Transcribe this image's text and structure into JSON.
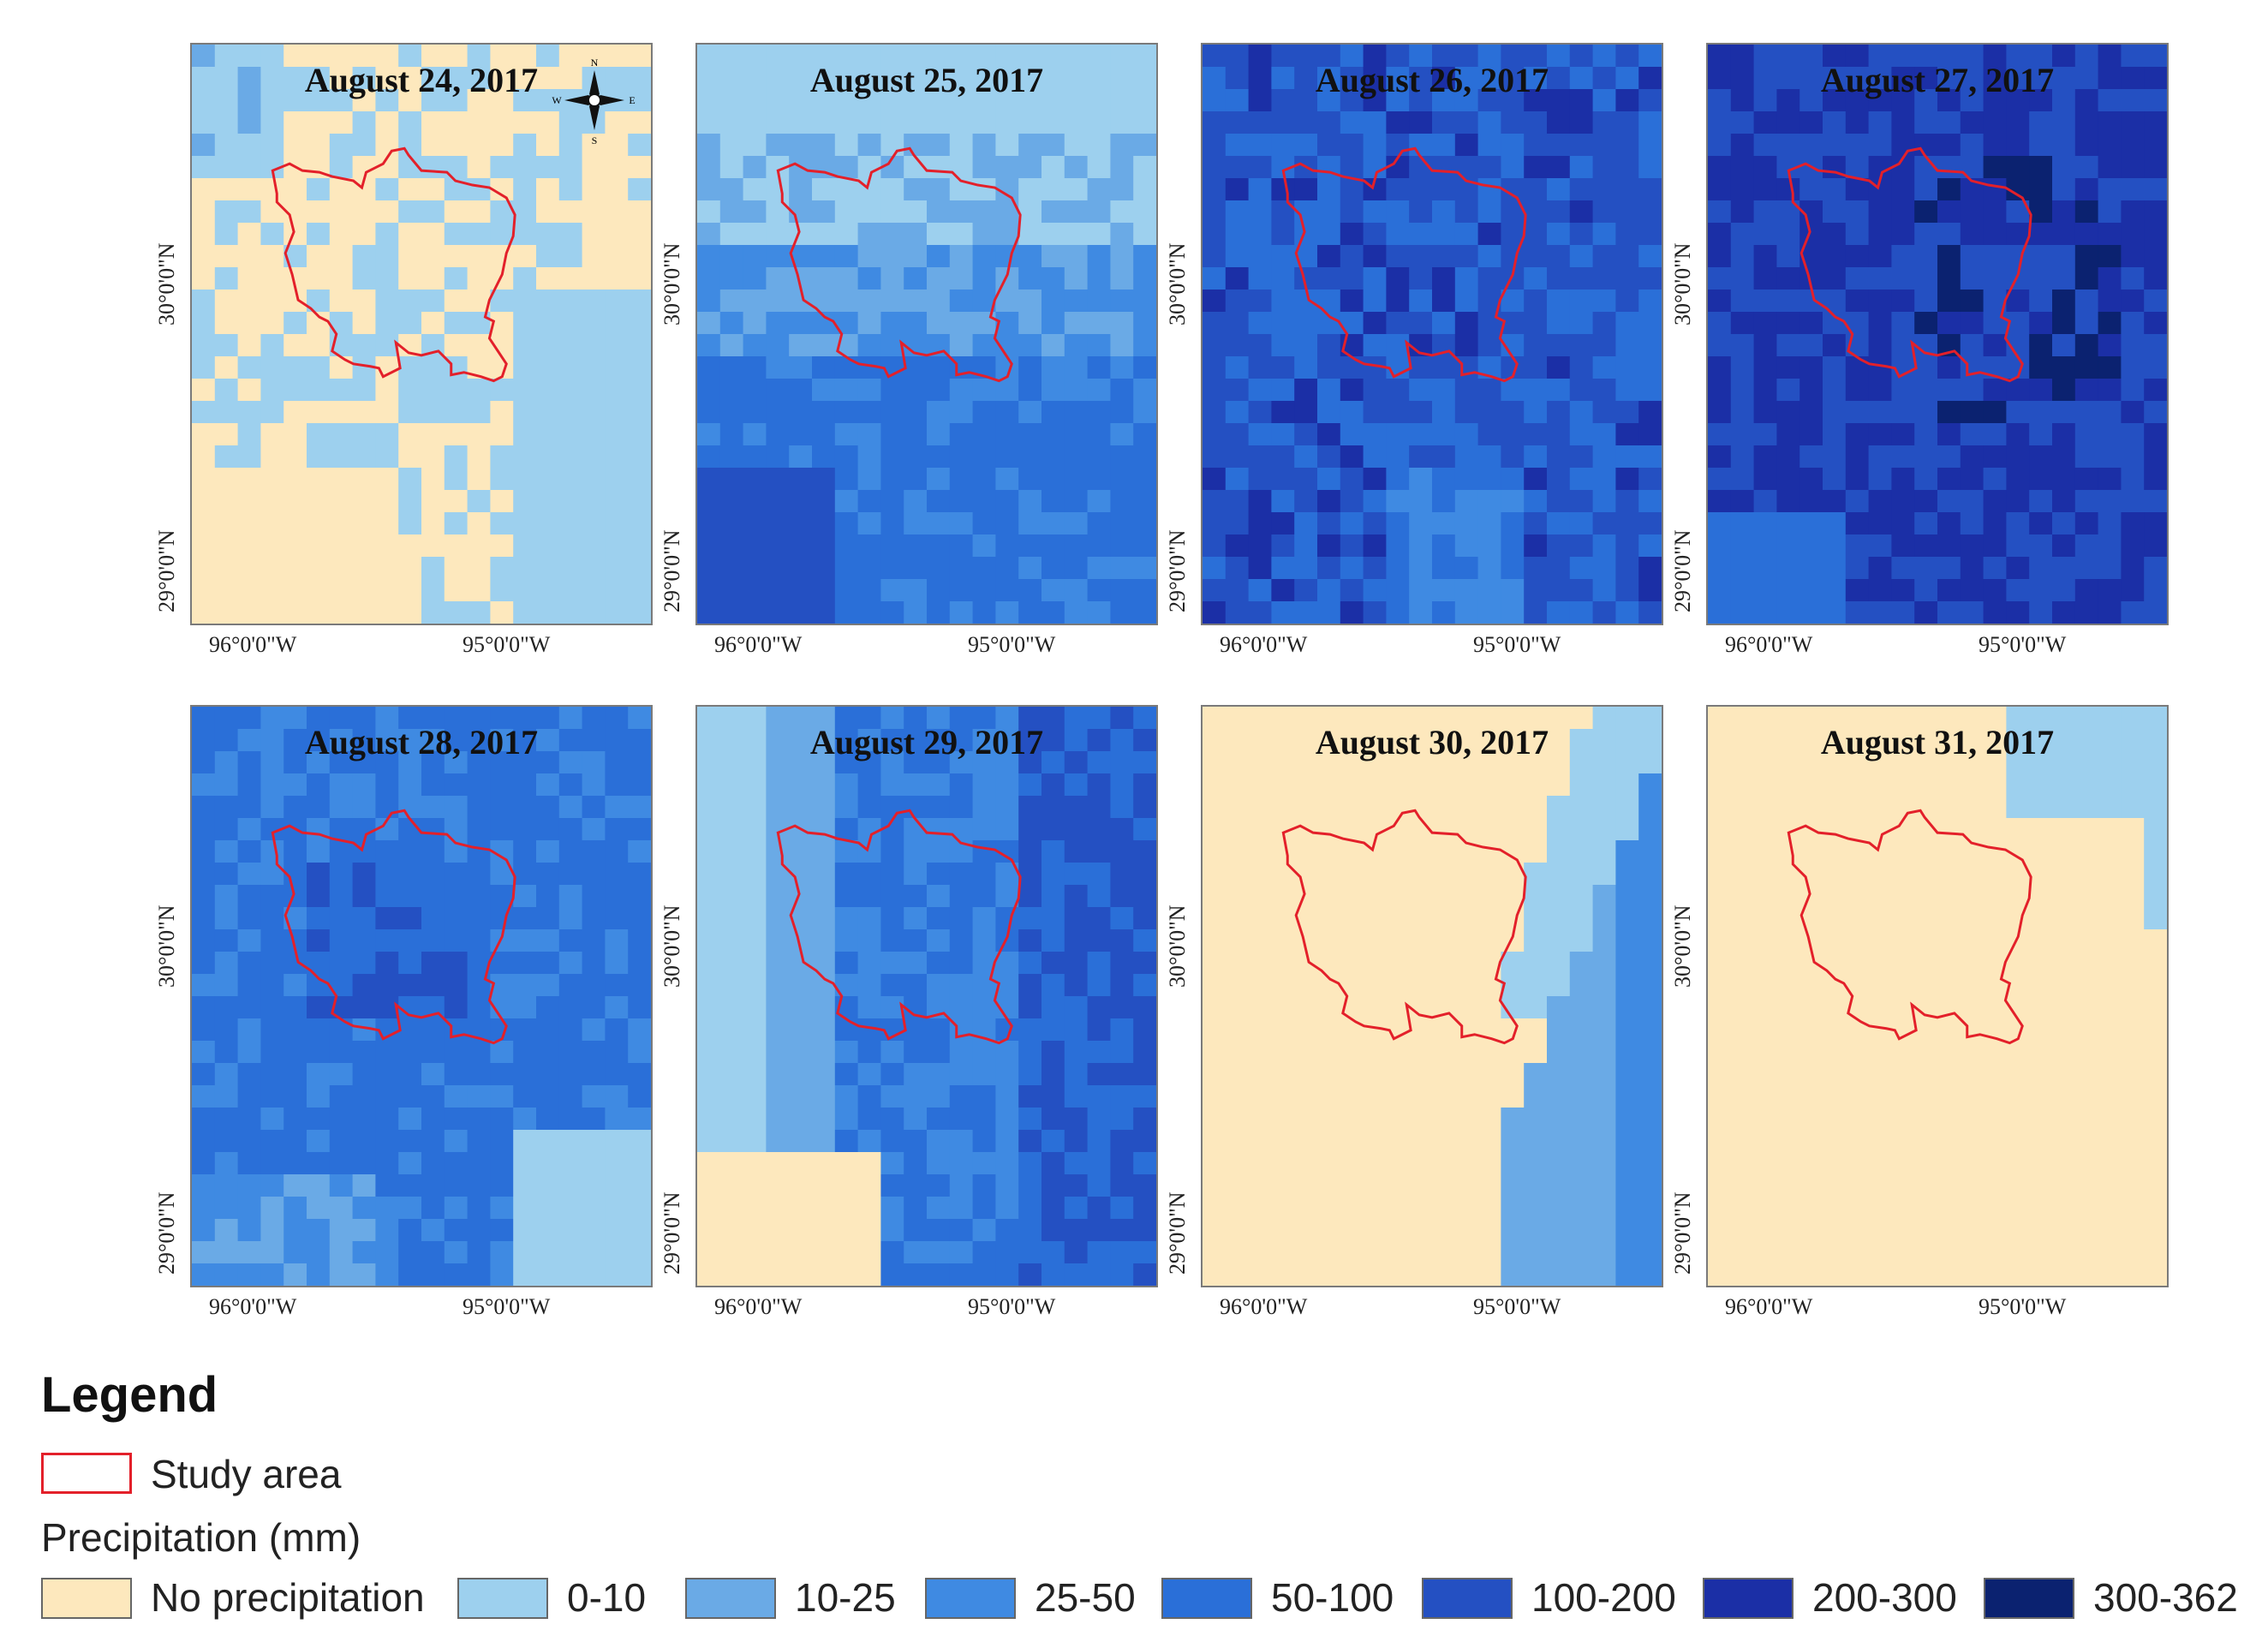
{
  "panels": [
    {
      "title": "August 24, 2017"
    },
    {
      "title": "August 25, 2017"
    },
    {
      "title": "August 26, 2017"
    },
    {
      "title": "August 27, 2017"
    },
    {
      "title": "August 28, 2017"
    },
    {
      "title": "August 29, 2017"
    },
    {
      "title": "August 30, 2017"
    },
    {
      "title": "August 31, 2017"
    }
  ],
  "axes": {
    "lat_top": "30°0'0\"N",
    "lat_bottom": "29°0'0\"N",
    "lon_left": "96°0'0\"W",
    "lon_right": "95°0'0\"W"
  },
  "compass": {
    "n": "N",
    "s": "S",
    "e": "E",
    "w": "W"
  },
  "legend": {
    "title": "Legend",
    "study_area_label": "Study area",
    "precip_label": "Precipitation (mm)",
    "classes": [
      {
        "label": "No precipitation",
        "color": "#fde8bd"
      },
      {
        "label": "0-10",
        "color": "#9dd0ee"
      },
      {
        "label": "10-25",
        "color": "#6aaae6"
      },
      {
        "label": "25-50",
        "color": "#3f8ae2"
      },
      {
        "label": "50-100",
        "color": "#2a6fd8"
      },
      {
        "label": "100-200",
        "color": "#2450c2"
      },
      {
        "label": "200-300",
        "color": "#1b2fa6"
      },
      {
        "label": "300-362",
        "color": "#0b2270"
      }
    ]
  },
  "colors": {
    "study_area_outline": "#e3202a",
    "panel_border": "#7a7a7a"
  }
}
